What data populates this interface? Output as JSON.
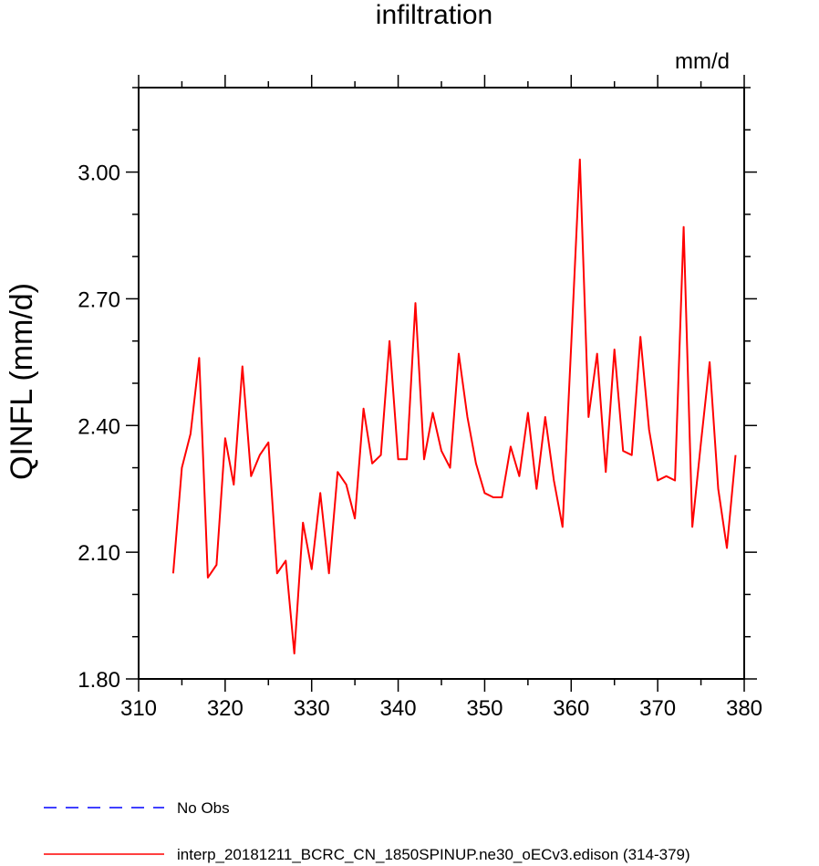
{
  "chart_data": {
    "type": "line",
    "title": "infiltration",
    "units": "mm/d",
    "ylabel": "QINFL  (mm/d)",
    "xlabel": "",
    "xlim": [
      310,
      380
    ],
    "ylim": [
      1.8,
      3.2
    ],
    "xticks": [
      310,
      320,
      330,
      340,
      350,
      360,
      370,
      380
    ],
    "xtick_labels": [
      "310",
      "320",
      "330",
      "340",
      "350",
      "360",
      "370",
      "380"
    ],
    "yticks": [
      1.8,
      2.1,
      2.4,
      2.7,
      3.0
    ],
    "ytick_labels": [
      "1.80",
      "2.10",
      "2.40",
      "2.70",
      "3.00"
    ],
    "grid": false,
    "legend_position": "bottom-left",
    "series": [
      {
        "name": "interp_20181211_BCRC_CN_1850SPINUP.ne30_oECv3.edison (314-379)",
        "color": "#ff0000",
        "style": "solid",
        "x": [
          314,
          315,
          316,
          317,
          318,
          319,
          320,
          321,
          322,
          323,
          324,
          325,
          326,
          327,
          328,
          329,
          330,
          331,
          332,
          333,
          334,
          335,
          336,
          337,
          338,
          339,
          340,
          341,
          342,
          343,
          344,
          345,
          346,
          347,
          348,
          349,
          350,
          351,
          352,
          353,
          354,
          355,
          356,
          357,
          358,
          359,
          360,
          361,
          362,
          363,
          364,
          365,
          366,
          367,
          368,
          369,
          370,
          371,
          372,
          373,
          374,
          375,
          376,
          377,
          378,
          379
        ],
        "values": [
          2.05,
          2.3,
          2.38,
          2.56,
          2.04,
          2.07,
          2.37,
          2.26,
          2.54,
          2.28,
          2.33,
          2.36,
          2.05,
          2.08,
          1.86,
          2.17,
          2.06,
          2.24,
          2.05,
          2.29,
          2.26,
          2.18,
          2.44,
          2.31,
          2.33,
          2.6,
          2.32,
          2.32,
          2.69,
          2.32,
          2.43,
          2.34,
          2.3,
          2.57,
          2.42,
          2.31,
          2.24,
          2.23,
          2.23,
          2.35,
          2.28,
          2.43,
          2.25,
          2.42,
          2.27,
          2.16,
          2.59,
          3.03,
          2.42,
          2.57,
          2.29,
          2.58,
          2.34,
          2.33,
          2.61,
          2.39,
          2.27,
          2.28,
          2.27,
          2.87,
          2.16,
          2.36,
          2.55,
          2.25,
          2.11,
          2.33
        ]
      },
      {
        "name": "No Obs",
        "color": "#0000ff",
        "style": "dashed",
        "x": [],
        "values": []
      }
    ]
  }
}
